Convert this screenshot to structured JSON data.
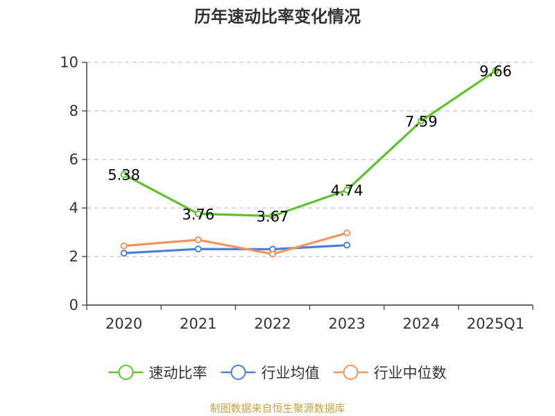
{
  "chart_data": {
    "type": "line",
    "title": "历年速动比率变化情况",
    "xlabel": "",
    "ylabel": "",
    "categories": [
      "2020",
      "2021",
      "2022",
      "2023",
      "2024",
      "2025Q1"
    ],
    "ylim": [
      0,
      10
    ],
    "yticks": [
      0,
      2,
      4,
      6,
      8,
      10
    ],
    "grid": true,
    "legend_position": "bottom",
    "series": [
      {
        "name": "速动比率",
        "color": "#5cc32a",
        "values": [
          5.38,
          3.76,
          3.67,
          4.74,
          7.59,
          9.66
        ],
        "labels": [
          "5.38",
          "3.76",
          "3.67",
          "4.74",
          "7.59",
          "9.66"
        ],
        "show_labels": true
      },
      {
        "name": "行业均值",
        "color": "#4b7fd8",
        "values": [
          2.14,
          2.31,
          2.3,
          2.47,
          null,
          null
        ],
        "show_labels": false
      },
      {
        "name": "行业中位数",
        "color": "#f4935c",
        "values": [
          2.44,
          2.69,
          2.1,
          2.97,
          null,
          null
        ],
        "show_labels": false
      }
    ]
  },
  "source": "制图数据来自恒生聚源数据库"
}
